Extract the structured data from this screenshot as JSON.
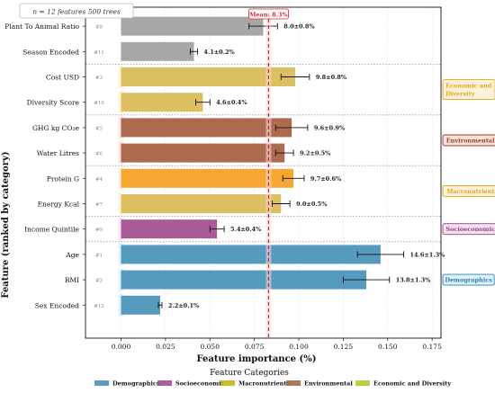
{
  "chart_data": {
    "type": "bar",
    "orientation": "horizontal",
    "xlabel": "Feature importance (%)",
    "ylabel": "Feature (ranked by category)",
    "xlim": [
      -0.02,
      0.18
    ],
    "xticks": [
      "0.000",
      "0.025",
      "0.050",
      "0.075",
      "0.100",
      "0.125",
      "0.150",
      "0.175"
    ],
    "xtick_values": [
      0,
      0.025,
      0.05,
      0.075,
      0.1,
      0.125,
      0.15,
      0.175
    ],
    "grid": "vertical dotted",
    "note": "n = 12 features 500 trees",
    "mean_line": {
      "value": 0.083,
      "label": "Mean: 8.3%",
      "color": "#d62728"
    },
    "bars": [
      {
        "feature": "Plant To Animal Ratio",
        "rank": "#8",
        "value": 0.08,
        "err": 0.008,
        "label": "8.0±0.8%",
        "category": "",
        "color": "#a0a0a0"
      },
      {
        "feature": "Season Encoded",
        "rank": "#11",
        "value": 0.041,
        "err": 0.002,
        "label": "4.1±0.2%",
        "category": "",
        "color": "#a0a0a0"
      },
      {
        "feature": "Cost USD",
        "rank": "#3",
        "value": 0.098,
        "err": 0.008,
        "label": "9.8±0.8%",
        "category": "Economic and Diversity",
        "color": "#d9ba52"
      },
      {
        "feature": "Diversity Score",
        "rank": "#10",
        "value": 0.046,
        "err": 0.004,
        "label": "4.6±0.4%",
        "category": "Economic and Diversity",
        "color": "#d9ba52"
      },
      {
        "feature": "GHG kg CO₂e",
        "rank": "#5",
        "value": 0.096,
        "err": 0.009,
        "label": "9.6±0.9%",
        "category": "Environmental",
        "color": "#a55d3f"
      },
      {
        "feature": "Water Litres",
        "rank": "#6",
        "value": 0.092,
        "err": 0.005,
        "label": "9.2±0.5%",
        "category": "Environmental",
        "color": "#a55d3f"
      },
      {
        "feature": "Protein G",
        "rank": "#4",
        "value": 0.097,
        "err": 0.006,
        "label": "9.7±0.6%",
        "category": "Macronutrients",
        "color": "#f5a020"
      },
      {
        "feature": "Energy Kcal",
        "rank": "#7",
        "value": 0.09,
        "err": 0.005,
        "label": "9.0±0.5%",
        "category": "Macronutrients",
        "color": "#d9ba52"
      },
      {
        "feature": "Income Quintile",
        "rank": "#9",
        "value": 0.054,
        "err": 0.004,
        "label": "5.4±0.4%",
        "category": "Socioeconomic",
        "color": "#a24d8e"
      },
      {
        "feature": "Age",
        "rank": "#1",
        "value": 0.146,
        "err": 0.013,
        "label": "14.6±1.3%",
        "category": "Demographics",
        "color": "#4891b8"
      },
      {
        "feature": "BMI",
        "rank": "#2",
        "value": 0.138,
        "err": 0.013,
        "label": "13.8±1.3%",
        "category": "Demographics",
        "color": "#4891b8"
      },
      {
        "feature": "Sex Encoded",
        "rank": "#12",
        "value": 0.022,
        "err": 0.001,
        "label": "2.2±0.1%",
        "category": "Demographics",
        "color": "#4891b8"
      }
    ],
    "category_labels": [
      {
        "name": "Economic and Diversity",
        "color": "#e8a317",
        "bg": "#fdf3dc",
        "rows": [
          2,
          3
        ]
      },
      {
        "name": "Environmental",
        "color": "#a33a22",
        "bg": "#f7e3dc",
        "rows": [
          4,
          5
        ]
      },
      {
        "name": "Macronutrients",
        "color": "#e8a317",
        "bg": "#fdf3dc",
        "rows": [
          6,
          7
        ]
      },
      {
        "name": "Socioeconomic",
        "color": "#9a3f8a",
        "bg": "#f3e1f0",
        "rows": [
          8,
          8
        ]
      },
      {
        "name": "Demographics",
        "color": "#2e7fb0",
        "bg": "#dff0f8",
        "rows": [
          9,
          11
        ]
      }
    ],
    "separators_after_rows": [
      1,
      3,
      5,
      7,
      8
    ],
    "legend": {
      "title": "Feature Categories",
      "position": "bottom",
      "items": [
        {
          "name": "Demographics",
          "color": "#4891b8"
        },
        {
          "name": "Socioeconomic",
          "color": "#a24d8e"
        },
        {
          "name": "Macronutrients",
          "color": "#c8b420"
        },
        {
          "name": "Environmental",
          "color": "#a06a48"
        },
        {
          "name": "Economic and Diversity",
          "color": "#b8c832"
        }
      ]
    }
  }
}
